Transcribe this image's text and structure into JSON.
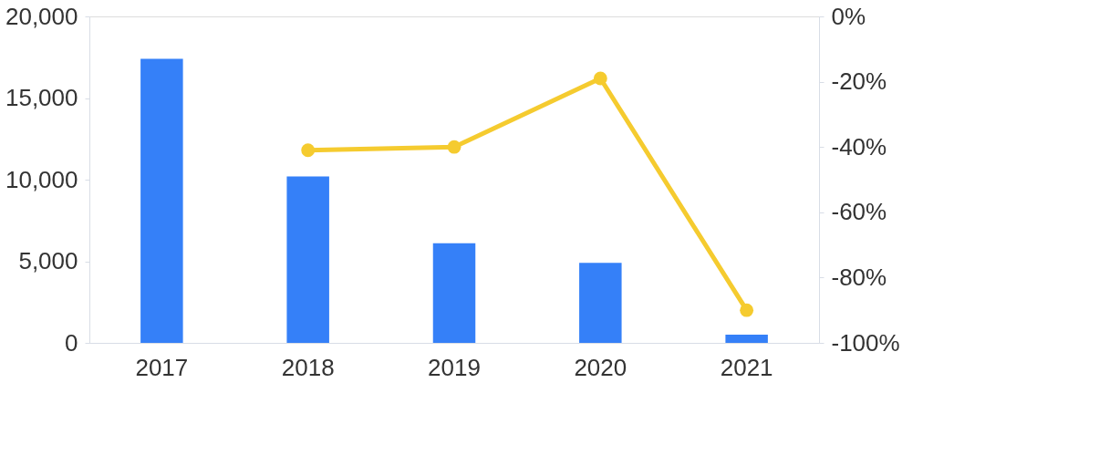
{
  "chart_data": {
    "type": "bar",
    "categories": [
      "2017",
      "2018",
      "2019",
      "2020",
      "2021"
    ],
    "series": [
      {
        "color": "#3580f8",
        "values": [
          17400,
          10200,
          6100,
          4900,
          500
        ]
      },
      {
        "type": "line",
        "axis": "y2",
        "color": "#f5cb2f",
        "marker": "circle",
        "values": [
          null,
          -41,
          -40,
          -19,
          -90
        ]
      }
    ],
    "ylim": [
      0,
      20000
    ],
    "yticks": [
      0,
      {
        "value": 5000,
        "label": "5,000"
      },
      {
        "value": 10000,
        "label": "10,000"
      },
      {
        "value": 15000,
        "label": "15,000"
      },
      {
        "value": 20000,
        "label": "20,000"
      }
    ],
    "y2lim": [
      -100,
      0
    ],
    "y2ticks": [
      {
        "value": 0,
        "label": "0%"
      },
      {
        "value": -20,
        "label": "-20%"
      },
      {
        "value": -40,
        "label": "-40%"
      },
      {
        "value": -60,
        "label": "-60%"
      },
      {
        "value": -80,
        "label": "-80%"
      },
      {
        "value": -100,
        "label": "-100%"
      }
    ],
    "grid": false
  }
}
